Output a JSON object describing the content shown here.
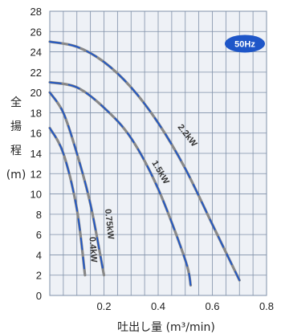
{
  "chart_data": {
    "type": "line",
    "title": "",
    "badge": "50Hz",
    "xlabel": "吐出し量 (m³/min)",
    "ylabel_chars": [
      "全",
      "揚",
      "程",
      "(m)"
    ],
    "xlim": [
      0,
      0.8
    ],
    "ylim": [
      0,
      28
    ],
    "x_ticks": [
      0.2,
      0.4,
      0.6,
      0.8
    ],
    "x_tick_labels": [
      "0.2",
      "0.4",
      "0.6",
      "0.8"
    ],
    "y_ticks": [
      0,
      2,
      4,
      6,
      8,
      10,
      12,
      14,
      16,
      18,
      20,
      22,
      24,
      26,
      28
    ],
    "y_tick_labels": [
      "0",
      "2",
      "4",
      "6",
      "8",
      "10",
      "12",
      "14",
      "16",
      "18",
      "20",
      "22",
      "24",
      "26",
      "28"
    ],
    "grid": true,
    "colors": {
      "grid": "#7f90a8",
      "plot_bg": "#eef1f6",
      "curve": "#888888",
      "dashed": "#1e56c8",
      "badge": "#1e56c8"
    },
    "series": [
      {
        "name": "2.2kW",
        "x": [
          0.0,
          0.1,
          0.2,
          0.3,
          0.4,
          0.5,
          0.6,
          0.7
        ],
        "y": [
          25.0,
          24.5,
          23.0,
          20.5,
          17.0,
          12.5,
          7.0,
          1.5
        ]
      },
      {
        "name": "1.5kW",
        "x": [
          0.0,
          0.1,
          0.2,
          0.3,
          0.4,
          0.5,
          0.52
        ],
        "y": [
          21.0,
          20.5,
          18.5,
          15.5,
          10.5,
          3.5,
          1.0
        ]
      },
      {
        "name": "0.75kW",
        "x": [
          0.0,
          0.05,
          0.1,
          0.15,
          0.2
        ],
        "y": [
          20.0,
          18.0,
          14.0,
          9.0,
          2.0
        ]
      },
      {
        "name": "0.4kW",
        "x": [
          0.0,
          0.05,
          0.1,
          0.13
        ],
        "y": [
          16.5,
          14.0,
          8.5,
          2.0
        ]
      }
    ]
  }
}
